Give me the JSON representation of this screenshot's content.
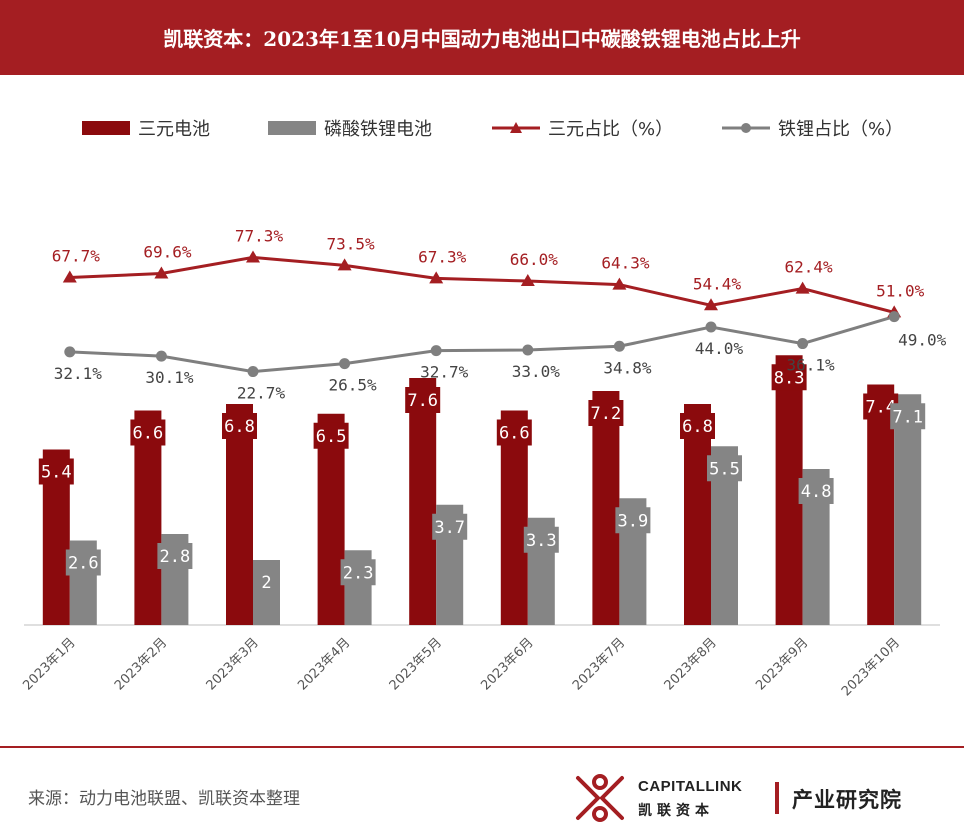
{
  "header": {
    "title": "凯联资本：2023年1至10月中国动力电池出口中碳酸铁锂电池占比上升"
  },
  "legend": {
    "ternary_battery": "三元电池",
    "lfp_battery": "磷酸铁锂电池",
    "ternary_share": "三元占比（%）",
    "lfp_share": "铁锂占比（%）"
  },
  "colors": {
    "ternary": "#a41e22",
    "bar_ternary": "#8b0a0d",
    "lfp": "#858585",
    "line_lfp": "#7f7f7f",
    "brand": "#a41e22"
  },
  "chart_data": {
    "type": "bar",
    "categories": [
      "2023年1月",
      "2023年2月",
      "2023年3月",
      "2023年4月",
      "2023年5月",
      "2023年6月",
      "2023年7月",
      "2023年8月",
      "2023年9月",
      "2023年10月"
    ],
    "series": [
      {
        "name": "三元电池",
        "type": "bar",
        "values": [
          5.4,
          6.6,
          6.8,
          6.5,
          7.6,
          6.6,
          7.2,
          6.8,
          8.3,
          7.4
        ]
      },
      {
        "name": "磷酸铁锂电池",
        "type": "bar",
        "values": [
          2.6,
          2.8,
          2,
          2.3,
          3.7,
          3.3,
          3.9,
          5.5,
          4.8,
          7.1
        ]
      },
      {
        "name": "三元占比（%）",
        "type": "line",
        "values": [
          67.7,
          69.6,
          77.3,
          73.5,
          67.3,
          66.0,
          64.3,
          54.4,
          62.4,
          51.0
        ]
      },
      {
        "name": "铁锂占比（%）",
        "type": "line",
        "values": [
          32.1,
          30.1,
          22.7,
          26.5,
          32.7,
          33.0,
          34.8,
          44.0,
          36.1,
          49.0
        ]
      }
    ],
    "bar_labels": {
      "ternary": [
        "5.4",
        "6.6",
        "6.8",
        "6.5",
        "7.6",
        "6.6",
        "7.2",
        "6.8",
        "8.3",
        "7.4"
      ],
      "lfp": [
        "2.6",
        "2.8",
        "2",
        "2.3",
        "3.7",
        "3.3",
        "3.9",
        "5.5",
        "4.8",
        "7.1"
      ]
    },
    "line_labels": {
      "ternary": [
        "67.7%",
        "69.6%",
        "77.3%",
        "73.5%",
        "67.3%",
        "66.0%",
        "64.3%",
        "54.4%",
        "62.4%",
        "51.0%"
      ],
      "lfp": [
        "32.1%",
        "30.1%",
        "22.7%",
        "26.5%",
        "32.7%",
        "33.0%",
        "34.8%",
        "44.0%",
        "36.1%",
        "49.0%"
      ]
    },
    "bar_ylim": [
      0,
      8.5
    ],
    "line_ylim": [
      0,
      100
    ],
    "legend_position": "top"
  },
  "footer": {
    "source": "来源：动力电池联盟、凯联资本整理",
    "logo_en": "CAPITALLINK",
    "logo_cn": "凯联资本",
    "institute": "产业研究院"
  }
}
